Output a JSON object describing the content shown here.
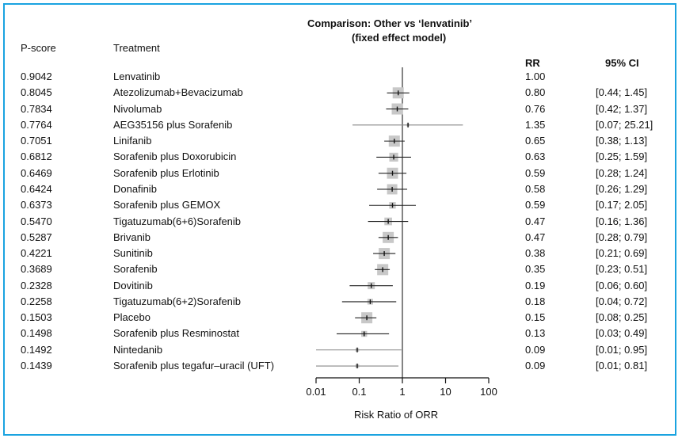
{
  "chart_data": {
    "type": "forest",
    "title": "Comparison:  Other vs ‘lenvatinib’",
    "subtitle": "(fixed effect model)",
    "xlabel": "Risk Ratio of ORR",
    "xscale": "log",
    "xlim": [
      0.01,
      100
    ],
    "xticks": [
      "0.01",
      "0.1",
      "1",
      "10",
      "100"
    ],
    "reference_line": 1,
    "columns": {
      "pscore": "P-score",
      "treatment": "Treatment",
      "rr": "RR",
      "ci": "95% CI"
    },
    "rows": [
      {
        "pscore": "0.9042",
        "treatment": "Lenvatinib",
        "rr": "1.00",
        "ci": "",
        "est": 1.0,
        "lo": null,
        "hi": null
      },
      {
        "pscore": "0.8045",
        "treatment": "Atezolizumab+Bevacizumab",
        "rr": "0.80",
        "ci": "[0.44; 1.45]",
        "est": 0.8,
        "lo": 0.44,
        "hi": 1.45
      },
      {
        "pscore": "0.7834",
        "treatment": "Nivolumab",
        "rr": "0.76",
        "ci": "[0.42; 1.37]",
        "est": 0.76,
        "lo": 0.42,
        "hi": 1.37
      },
      {
        "pscore": "0.7764",
        "treatment": "AEG35156  plus Sorafenib",
        "rr": "1.35",
        "ci": "[0.07; 25.21]",
        "est": 1.35,
        "lo": 0.07,
        "hi": 25.21
      },
      {
        "pscore": "0.7051",
        "treatment": "Linifanib",
        "rr": "0.65",
        "ci": "[0.38; 1.13]",
        "est": 0.65,
        "lo": 0.38,
        "hi": 1.13
      },
      {
        "pscore": "0.6812",
        "treatment": "Sorafenib plus Doxorubicin",
        "rr": "0.63",
        "ci": "[0.25; 1.59]",
        "est": 0.63,
        "lo": 0.25,
        "hi": 1.59
      },
      {
        "pscore": "0.6469",
        "treatment": "Sorafenib plus Erlotinib",
        "rr": "0.59",
        "ci": "[0.28; 1.24]",
        "est": 0.59,
        "lo": 0.28,
        "hi": 1.24
      },
      {
        "pscore": "0.6424",
        "treatment": "Donafinib",
        "rr": "0.58",
        "ci": "[0.26; 1.29]",
        "est": 0.58,
        "lo": 0.26,
        "hi": 1.29
      },
      {
        "pscore": "0.6373",
        "treatment": "Sorafenib plus GEMOX",
        "rr": "0.59",
        "ci": "[0.17; 2.05]",
        "est": 0.59,
        "lo": 0.17,
        "hi": 2.05
      },
      {
        "pscore": "0.5470",
        "treatment": "Tigatuzumab(6+6)Sorafenib",
        "rr": "0.47",
        "ci": "[0.16; 1.36]",
        "est": 0.47,
        "lo": 0.16,
        "hi": 1.36
      },
      {
        "pscore": "0.5287",
        "treatment": "Brivanib",
        "rr": "0.47",
        "ci": "[0.28; 0.79]",
        "est": 0.47,
        "lo": 0.28,
        "hi": 0.79
      },
      {
        "pscore": "0.4221",
        "treatment": "Sunitinib",
        "rr": "0.38",
        "ci": "[0.21; 0.69]",
        "est": 0.38,
        "lo": 0.21,
        "hi": 0.69
      },
      {
        "pscore": "0.3689",
        "treatment": "Sorafenib",
        "rr": "0.35",
        "ci": "[0.23; 0.51]",
        "est": 0.35,
        "lo": 0.23,
        "hi": 0.51
      },
      {
        "pscore": "0.2328",
        "treatment": "Dovitinib",
        "rr": "0.19",
        "ci": "[0.06; 0.60]",
        "est": 0.19,
        "lo": 0.06,
        "hi": 0.6
      },
      {
        "pscore": "0.2258",
        "treatment": "Tigatuzumab(6+2)Sorafenib",
        "rr": "0.18",
        "ci": "[0.04; 0.72]",
        "est": 0.18,
        "lo": 0.04,
        "hi": 0.72
      },
      {
        "pscore": "0.1503",
        "treatment": "Placebo",
        "rr": "0.15",
        "ci": "[0.08; 0.25]",
        "est": 0.15,
        "lo": 0.08,
        "hi": 0.25
      },
      {
        "pscore": "0.1498",
        "treatment": "Sorafenib plus Resminostat",
        "rr": "0.13",
        "ci": "[0.03; 0.49]",
        "est": 0.13,
        "lo": 0.03,
        "hi": 0.49
      },
      {
        "pscore": "0.1492",
        "treatment": "Nintedanib",
        "rr": "0.09",
        "ci": "[0.01; 0.95]",
        "est": 0.09,
        "lo": 0.01,
        "hi": 0.95
      },
      {
        "pscore": "0.1439",
        "treatment": "Sorafenib plus tegafur–uracil (UFT)",
        "rr": "0.09",
        "ci": "[0.01; 0.81]",
        "est": 0.09,
        "lo": 0.01,
        "hi": 0.81
      }
    ],
    "colors": {
      "frame": "#1aa3e0",
      "square": "#c8c8c8",
      "line": "#222222"
    }
  }
}
